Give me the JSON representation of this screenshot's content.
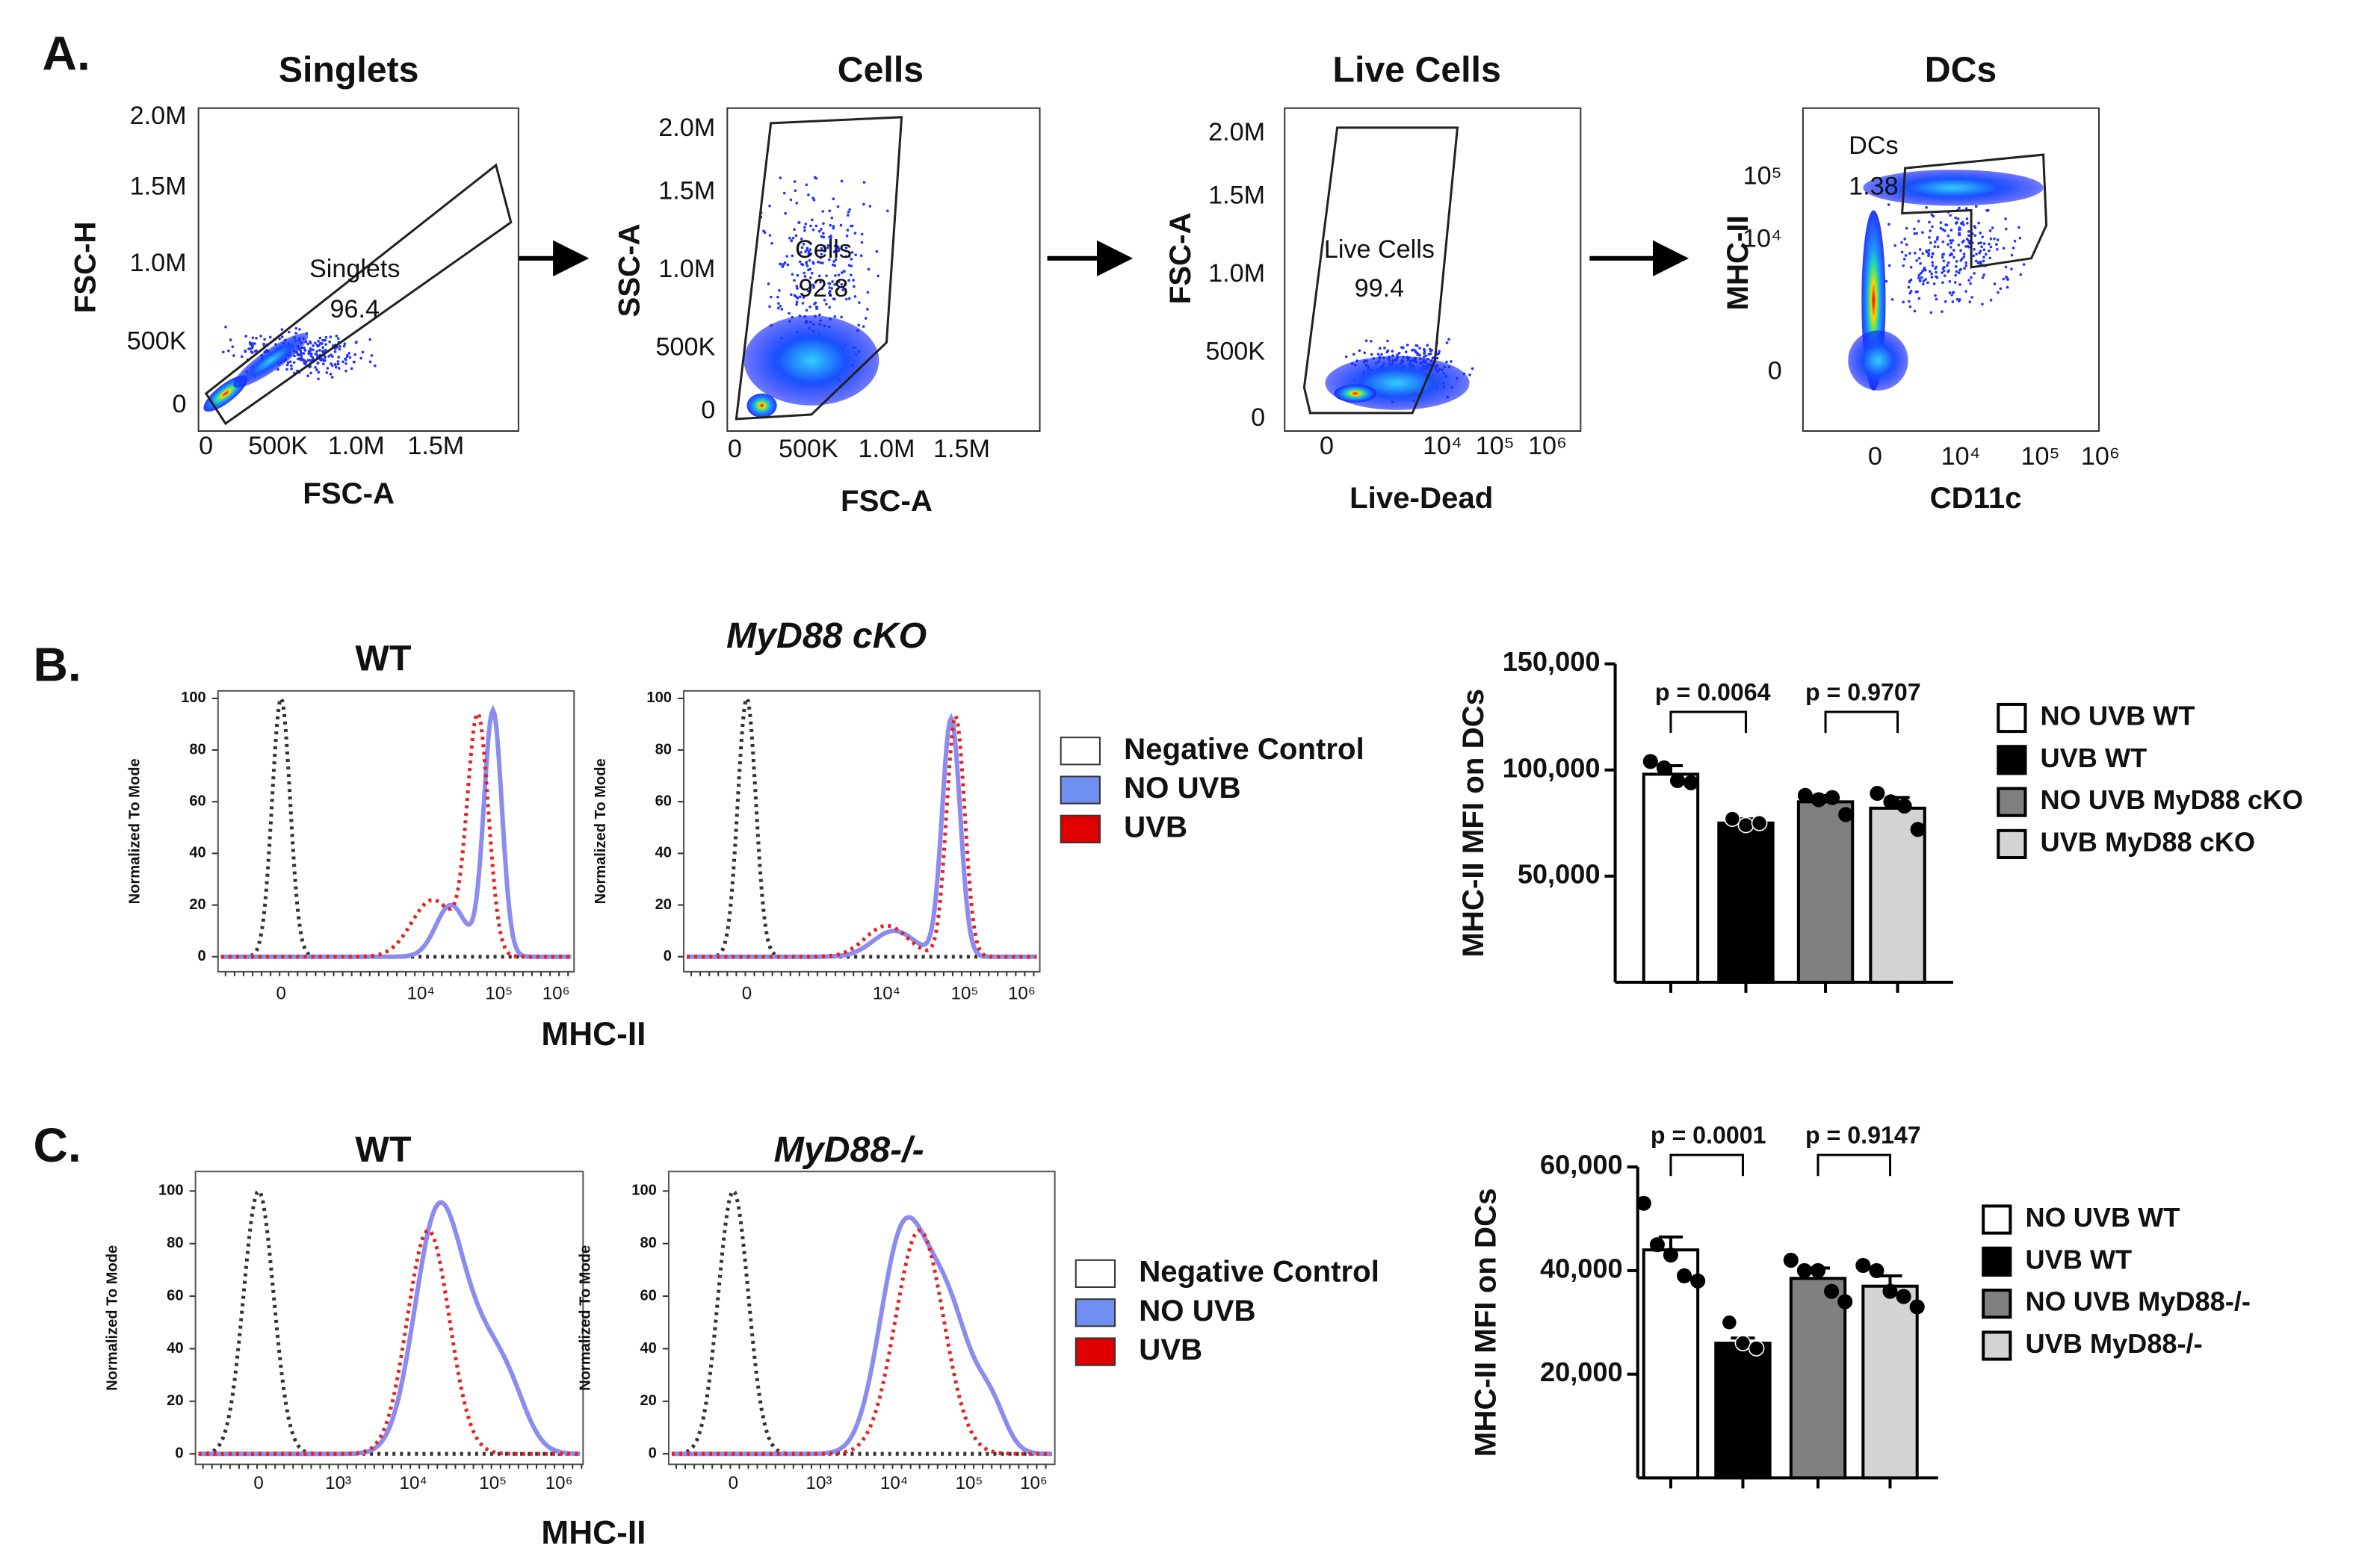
{
  "panel_labels": [
    "A.",
    "B.",
    "C."
  ],
  "flow_plots": [
    {
      "title": "Singlets",
      "xlabel": "FSC-A",
      "ylabel": "FSC-H",
      "xticks": [
        "0",
        "500K",
        "1.0M",
        "1.5M"
      ],
      "yticks": [
        "2.0M",
        "1.5M",
        "1.0M",
        "500K",
        "0"
      ],
      "gate": {
        "name": "Singlets",
        "percent": 96.4
      }
    },
    {
      "title": "Cells",
      "xlabel": "FSC-A",
      "ylabel": "SSC-A",
      "xticks": [
        "0",
        "500K",
        "1.0M",
        "1.5M"
      ],
      "yticks": [
        "2.0M",
        "1.5M",
        "1.0M",
        "500K",
        "0"
      ],
      "gate": {
        "name": "Cells",
        "percent": 92.8
      }
    },
    {
      "title": "Live Cells",
      "xlabel": "Live-Dead",
      "ylabel": "FSC-A",
      "xticks": [
        "0",
        "10⁴",
        "10⁵",
        "10⁶"
      ],
      "yticks": [
        "2.0M",
        "1.5M",
        "1.0M",
        "500K",
        "0"
      ],
      "gate": {
        "name": "Live Cells",
        "percent": 99.4
      }
    },
    {
      "title": "DCs",
      "xlabel": "CD11c",
      "ylabel": "MHC-II",
      "xticks": [
        "0",
        "10⁴",
        "10⁵",
        "10⁶"
      ],
      "yticks": [
        "10⁵",
        "10⁴",
        "0"
      ],
      "gate": {
        "name": "DCs",
        "percent": 1.38
      }
    }
  ],
  "histograms": [
    {
      "title": "WT",
      "xticks": [
        "0",
        "10⁴",
        "10⁵",
        "10⁶"
      ],
      "ylim": [
        0,
        100
      ],
      "yticks": [
        0,
        20,
        40,
        60,
        80,
        100
      ],
      "ylabel": "Normalized To Mode"
    },
    {
      "title": "MyD88 cKO",
      "xticks": [
        "0",
        "10⁴",
        "10⁵",
        "10⁶"
      ],
      "ylim": [
        0,
        100
      ],
      "yticks": [
        0,
        20,
        40,
        60,
        80,
        100
      ],
      "ylabel": "Normalized To Mode"
    },
    {
      "title": "WT",
      "xticks": [
        "0",
        "10³",
        "10⁴",
        "10⁵",
        "10⁶"
      ],
      "ylim": [
        0,
        100
      ],
      "yticks": [
        0,
        20,
        40,
        60,
        80,
        100
      ],
      "ylabel": "Normalized To Mode"
    },
    {
      "title": "MyD88-/-",
      "xticks": [
        "0",
        "10³",
        "10⁴",
        "10⁵",
        "10⁶"
      ],
      "ylim": [
        0,
        100
      ],
      "yticks": [
        0,
        20,
        40,
        60,
        80,
        100
      ],
      "ylabel": "Normalized To Mode"
    }
  ],
  "histogram_xlabel": "MHC-II",
  "histogram_legend": [
    "Negative Control",
    "NO UVB",
    "UVB"
  ],
  "chart_data": [
    {
      "type": "bar",
      "ylabel": "MHC-II MFI on DCs",
      "ylim": [
        0,
        150000
      ],
      "yticks": [
        {
          "value": 50000,
          "label": "50,000"
        },
        {
          "value": 100000,
          "label": "100,000"
        },
        {
          "value": 150000,
          "label": "150,000"
        }
      ],
      "annotations": [
        "p = 0.0064",
        "p = 0.9707"
      ],
      "series": [
        {
          "name": "NO UVB WT",
          "color": "#ffffff",
          "values": [
            98000
          ],
          "errors": [
            4000
          ],
          "points": [
            104000,
            101000,
            95000,
            94000
          ]
        },
        {
          "name": "UVB WT",
          "color": "#000000",
          "values": [
            75000
          ],
          "errors": [
            2000
          ],
          "points": [
            77000,
            74000,
            75000
          ]
        },
        {
          "name": "NO UVB MyD88 cKO",
          "color": "#808080",
          "values": [
            85000
          ],
          "errors": [
            3000
          ],
          "points": [
            88000,
            86000,
            87000,
            79000
          ]
        },
        {
          "name": "UVB MyD88 cKO",
          "color": "#d3d3d3",
          "values": [
            82000
          ],
          "errors": [
            5000
          ],
          "points": [
            89000,
            85000,
            83000,
            72000
          ]
        }
      ]
    },
    {
      "type": "bar",
      "ylabel": "MHC-II MFI on DCs",
      "ylim": [
        0,
        60000
      ],
      "yticks": [
        {
          "value": 20000,
          "label": "20,000"
        },
        {
          "value": 40000,
          "label": "40,000"
        },
        {
          "value": 60000,
          "label": "60,000"
        }
      ],
      "annotations": [
        "p = 0.0001",
        "p = 0.9147"
      ],
      "series": [
        {
          "name": "NO UVB WT",
          "color": "#ffffff",
          "values": [
            44000
          ],
          "errors": [
            2500
          ],
          "points": [
            53000,
            45000,
            43000,
            39000,
            38000
          ]
        },
        {
          "name": "UVB WT",
          "color": "#000000",
          "values": [
            26000
          ],
          "errors": [
            1000
          ],
          "points": [
            30000,
            26000,
            25000
          ]
        },
        {
          "name": "NO UVB MyD88-/-",
          "color": "#808080",
          "values": [
            38500
          ],
          "errors": [
            2000
          ],
          "points": [
            42000,
            40000,
            40000,
            36000,
            34000
          ]
        },
        {
          "name": "UVB MyD88-/-",
          "color": "#d3d3d3",
          "values": [
            37000
          ],
          "errors": [
            2000
          ],
          "points": [
            41000,
            40000,
            36000,
            35000,
            33000
          ]
        }
      ]
    }
  ]
}
